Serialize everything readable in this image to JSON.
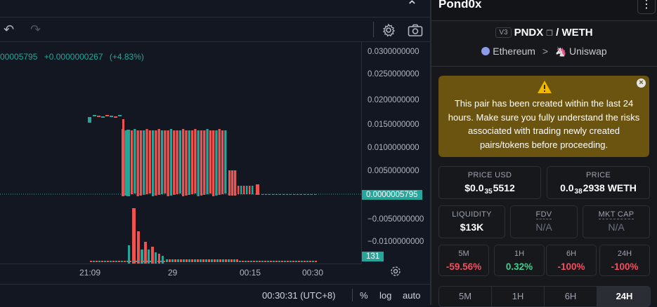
{
  "chart": {
    "legend": {
      "price": "00005795",
      "change": "+0.0000000267",
      "change_pct": "(+4.83%)"
    },
    "price_axis_labels": [
      "0.0300000000",
      "0.0250000000",
      "0.0200000000",
      "0.0150000000",
      "0.0100000000",
      "0.0050000000",
      "0.0000005795",
      "−0.0050000000",
      "−0.0100000000"
    ],
    "current_price_tag": "0.0000005795",
    "volume_tag": "131",
    "time_axis_labels": [
      "21:09",
      "29",
      "00:15",
      "00:30"
    ],
    "colors": {
      "up": "#26a69a",
      "down": "#ef5350",
      "background": "#131722"
    }
  },
  "bottom_bar": {
    "clock": "00:30:31 (UTC+8)",
    "percent": "%",
    "log": "log",
    "auto": "auto"
  },
  "info": {
    "token_title": "Pond0x",
    "version": "V3",
    "base": "PNDX",
    "quote": "/ WETH",
    "chain": "Ethereum",
    "chevron": ">",
    "dex": "Uniswap",
    "warning_text": "This pair has been created within the last 24 hours. Make sure you fully understand the risks associated with trading newly created pairs/tokens before proceeding.",
    "price_usd": {
      "label": "PRICE USD",
      "prefix": "$0.0",
      "zeros": "35",
      "digits": "5512"
    },
    "price": {
      "label": "PRICE",
      "prefix": "0.0",
      "zeros": "38",
      "digits": "2938 WETH"
    },
    "liquidity": {
      "label": "LIQUIDITY",
      "value": "$13K"
    },
    "fdv": {
      "label": "FDV",
      "value": "N/A"
    },
    "mkt_cap": {
      "label": "MKT CAP",
      "value": "N/A"
    },
    "changes": [
      {
        "label": "5M",
        "value": "-59.56%",
        "color": "#f0505e"
      },
      {
        "label": "1H",
        "value": "0.32%",
        "color": "#3fcf8e"
      },
      {
        "label": "6H",
        "value": "-100%",
        "color": "#f0505e"
      },
      {
        "label": "24H",
        "value": "-100%",
        "color": "#f0505e"
      }
    ],
    "timeframes": [
      "5M",
      "1H",
      "6H",
      "24H"
    ],
    "active_timeframe": "24H"
  }
}
